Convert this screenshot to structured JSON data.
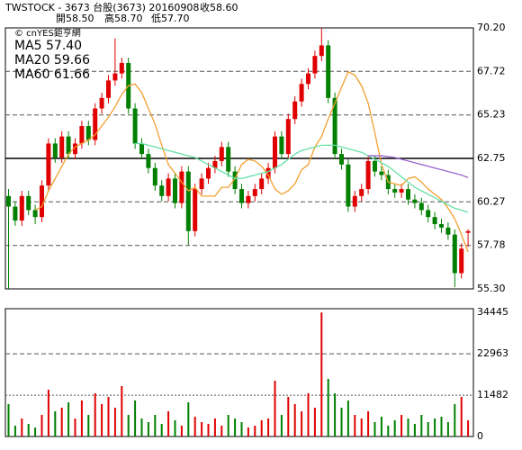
{
  "header": {
    "symbol": "TWSTOCK  - 3673  台股(3673) 20160908",
    "close": "收58.60",
    "open": "開58.50",
    "high": "高58.70",
    "low": "低57.70",
    "source": "© cnYES鉅亨網"
  },
  "chart_data": [
    {
      "type": "candlestick",
      "up_color": "#e00000",
      "down_color": "#008000",
      "open": [
        60.6,
        60.0,
        59.2,
        60.6,
        59.8,
        59.4,
        61.2,
        63.6,
        62.8,
        64.0,
        63.0,
        63.6,
        64.6,
        63.8,
        65.6,
        66.2,
        67.2,
        67.6,
        68.2,
        65.6,
        63.6,
        63.0,
        62.2,
        61.2,
        60.6,
        61.6,
        60.2,
        62.0,
        58.6,
        61.0,
        61.6,
        62.2,
        62.6,
        63.4,
        62.0,
        61.0,
        60.2,
        60.6,
        61.0,
        61.6,
        62.2,
        64.0,
        63.0,
        65.0,
        66.0,
        67.0,
        67.6,
        68.6,
        69.2,
        66.2,
        63.0,
        62.4,
        60.0,
        60.6,
        61.0,
        62.6,
        62.0,
        61.8,
        61.0,
        60.8,
        61.0,
        60.4,
        60.2,
        59.8,
        59.4,
        59.0,
        58.8,
        58.4,
        56.2,
        58.5
      ],
      "high": [
        61.0,
        60.3,
        60.9,
        60.9,
        60.1,
        61.5,
        63.9,
        63.9,
        64.3,
        64.3,
        63.9,
        64.9,
        64.9,
        65.9,
        66.5,
        67.5,
        69.6,
        68.5,
        68.5,
        65.9,
        63.9,
        63.3,
        62.5,
        61.5,
        61.9,
        61.9,
        62.3,
        62.3,
        61.3,
        61.9,
        62.5,
        62.9,
        63.7,
        63.7,
        62.3,
        61.3,
        60.9,
        61.3,
        61.9,
        62.5,
        64.3,
        64.3,
        65.3,
        66.3,
        67.3,
        67.9,
        68.9,
        70.2,
        69.5,
        66.5,
        63.3,
        62.7,
        60.9,
        61.3,
        62.9,
        62.9,
        62.3,
        62.1,
        61.3,
        61.3,
        61.3,
        60.7,
        60.5,
        60.1,
        59.7,
        59.3,
        59.1,
        58.7,
        57.9,
        58.7
      ],
      "low": [
        55.3,
        58.9,
        58.9,
        59.5,
        59.0,
        59.1,
        60.9,
        62.5,
        62.5,
        62.7,
        62.7,
        63.3,
        63.5,
        63.5,
        65.3,
        65.9,
        66.9,
        67.3,
        65.3,
        63.3,
        62.7,
        61.9,
        60.9,
        60.3,
        60.3,
        59.9,
        59.9,
        57.8,
        58.3,
        60.7,
        61.3,
        61.9,
        62.3,
        61.7,
        60.7,
        59.9,
        59.9,
        60.3,
        60.7,
        61.3,
        61.9,
        62.7,
        62.7,
        64.7,
        65.7,
        66.7,
        67.3,
        68.3,
        65.9,
        62.7,
        62.1,
        59.7,
        59.7,
        60.3,
        60.7,
        61.7,
        61.5,
        60.7,
        60.5,
        60.5,
        60.1,
        59.9,
        59.5,
        59.1,
        58.7,
        58.5,
        58.1,
        55.4,
        55.9,
        57.7
      ],
      "close": [
        60.0,
        59.2,
        60.6,
        59.8,
        59.4,
        61.2,
        63.6,
        62.8,
        64.0,
        63.0,
        63.6,
        64.6,
        63.8,
        65.6,
        66.2,
        67.2,
        67.6,
        68.2,
        65.6,
        63.6,
        63.0,
        62.2,
        61.2,
        60.6,
        61.6,
        60.2,
        62.0,
        58.6,
        61.0,
        61.6,
        62.2,
        62.6,
        63.4,
        62.0,
        61.0,
        60.2,
        60.6,
        61.0,
        61.6,
        62.2,
        64.0,
        63.0,
        65.0,
        66.0,
        67.0,
        67.6,
        68.6,
        69.2,
        66.2,
        63.0,
        62.4,
        60.0,
        60.6,
        61.0,
        62.6,
        62.0,
        61.8,
        61.0,
        60.8,
        61.0,
        60.4,
        60.2,
        59.8,
        59.4,
        59.0,
        58.8,
        58.4,
        56.2,
        57.6,
        58.6
      ],
      "series": [
        {
          "name": "MA5 57.40",
          "color": "#f0a030",
          "values": [
            null,
            null,
            null,
            null,
            59.8,
            60.0,
            60.9,
            61.6,
            62.3,
            63.0,
            63.4,
            63.6,
            63.8,
            64.1,
            64.6,
            65.1,
            65.7,
            66.4,
            66.9,
            67.0,
            66.5,
            65.6,
            64.7,
            63.5,
            62.4,
            61.9,
            61.4,
            60.9,
            61.1,
            60.6,
            60.6,
            60.6,
            61.1,
            61.1,
            61.6,
            62.4,
            62.7,
            62.6,
            62.3,
            61.8,
            61.0,
            60.7,
            60.9,
            61.3,
            62.1,
            62.4,
            63.4,
            64.0,
            65.0,
            65.9,
            66.8,
            67.7,
            67.5,
            66.9,
            65.9,
            64.2,
            62.4,
            61.4,
            61.3,
            61.2,
            61.6,
            61.7,
            61.4,
            61.0,
            60.7,
            60.4,
            59.9,
            59.3,
            58.4,
            57.4
          ]
        },
        {
          "name": "MA20 59.66",
          "color": "#66e0a8",
          "values": [
            null,
            null,
            null,
            null,
            null,
            null,
            null,
            null,
            null,
            null,
            null,
            null,
            null,
            null,
            null,
            null,
            null,
            null,
            null,
            63.6,
            63.6,
            63.5,
            63.4,
            63.3,
            63.2,
            63.1,
            63.0,
            62.9,
            62.8,
            62.6,
            62.4,
            62.2,
            62.0,
            61.8,
            61.6,
            61.6,
            61.7,
            61.8,
            61.9,
            62.0,
            62.2,
            62.4,
            62.7,
            63.0,
            63.2,
            63.3,
            63.4,
            63.5,
            63.5,
            63.5,
            63.4,
            63.3,
            63.2,
            63.1,
            62.9,
            62.7,
            62.5,
            62.3,
            62.0,
            61.7,
            61.4,
            61.1,
            60.9,
            60.7,
            60.5,
            60.3,
            60.1,
            59.9,
            59.8,
            59.66
          ]
        },
        {
          "name": "MA60 61.66",
          "color": "#9966cc",
          "values": [
            null,
            null,
            null,
            null,
            null,
            null,
            null,
            null,
            null,
            null,
            null,
            null,
            null,
            null,
            null,
            null,
            null,
            null,
            null,
            null,
            null,
            null,
            null,
            null,
            null,
            null,
            null,
            null,
            null,
            null,
            null,
            null,
            null,
            null,
            null,
            null,
            null,
            null,
            null,
            null,
            null,
            null,
            null,
            null,
            null,
            null,
            null,
            null,
            null,
            null,
            null,
            null,
            null,
            null,
            62.9,
            62.9,
            62.9,
            62.85,
            62.8,
            62.7,
            62.6,
            62.5,
            62.4,
            62.3,
            62.2,
            62.1,
            62.0,
            61.9,
            61.8,
            61.66
          ]
        }
      ],
      "ylim": [
        55.3,
        70.2
      ],
      "yticks": [
        {
          "value": 55.3,
          "label": "55.30"
        },
        57.78,
        60.27,
        62.75,
        65.23,
        67.72,
        {
          "value": 70.2,
          "label": "70.20"
        }
      ],
      "grid_styles": [
        "none",
        "dashed",
        "dashed",
        "solid",
        "dashed",
        "dashed",
        "none"
      ]
    },
    {
      "type": "volume",
      "up_color": "#e00000",
      "down_color": "#008000",
      "values": [
        9000,
        3000,
        5000,
        3500,
        2500,
        6000,
        13000,
        7000,
        8000,
        9500,
        5000,
        10000,
        6000,
        12000,
        9000,
        11000,
        8000,
        14000,
        6000,
        10000,
        5000,
        4000,
        6000,
        3500,
        7000,
        4500,
        3000,
        9500,
        5500,
        4000,
        3500,
        5000,
        3000,
        6000,
        5000,
        4000,
        2500,
        3000,
        4500,
        5000,
        15500,
        6000,
        11000,
        9000,
        7000,
        12000,
        8000,
        34445,
        16000,
        12000,
        8000,
        10000,
        6000,
        5000,
        7000,
        4000,
        5500,
        3000,
        4500,
        6000,
        5000,
        3500,
        6000,
        4000,
        5000,
        5500,
        4000,
        9000,
        11000,
        4500
      ],
      "ylim": [
        0,
        35500
      ],
      "yticks": [
        0,
        11482,
        22963,
        34445
      ],
      "grid_styles": [
        "none",
        "dotted",
        "dashed",
        "none"
      ]
    }
  ]
}
